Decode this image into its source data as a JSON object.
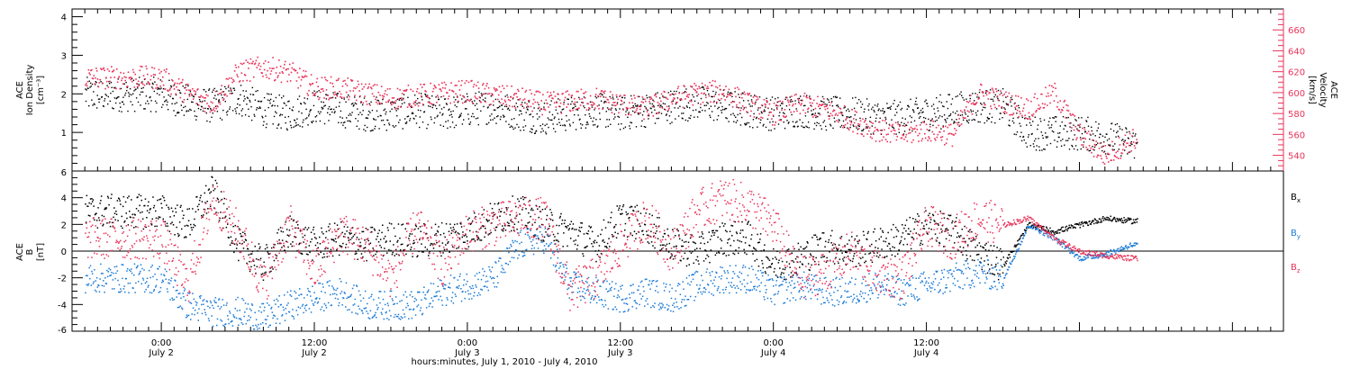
{
  "chart_data": [
    {
      "type": "scatter",
      "panel": "top",
      "ylabel_lines": [
        "ACE",
        "Ion Density",
        "[cm⁻³]"
      ],
      "y_ticks": [
        "1",
        "2",
        "3",
        "4"
      ],
      "y_range": [
        0,
        4.2
      ],
      "right_ylabel_lines": [
        "ACE",
        "Velocity",
        "[km/s]"
      ],
      "right_ticks": [
        "540",
        "560",
        "580",
        "600",
        "620",
        "640",
        "660"
      ],
      "right_range": [
        525,
        680
      ],
      "colors": {
        "density": "#000000",
        "velocity": "#e8335a"
      },
      "series": [
        {
          "name": "",
          "axis": "left",
          "x_hours": [
            0,
            2,
            4,
            6,
            8,
            10,
            12,
            14,
            16,
            18,
            20,
            22,
            24,
            26,
            28,
            30,
            32,
            34,
            36,
            38,
            40,
            42,
            44,
            46,
            48,
            50,
            52,
            54,
            56,
            58,
            60,
            62,
            64,
            66,
            68,
            70,
            72,
            74,
            76
          ],
          "values": [
            2.0,
            1.8,
            1.7,
            1.9,
            1.6,
            1.5,
            1.7,
            1.6,
            1.5,
            1.5,
            1.6,
            1.5,
            1.6,
            1.7,
            1.5,
            1.4,
            1.5,
            1.6,
            1.5,
            1.6,
            1.7,
            1.8,
            1.7,
            1.6,
            1.5,
            1.6,
            1.5,
            1.5,
            1.4,
            1.4,
            1.5,
            1.6,
            1.7,
            1.7,
            1.0,
            1.0,
            1.0,
            0.9,
            0.7
          ]
        },
        {
          "name": "",
          "axis": "right",
          "x_hours": [
            0,
            2,
            4,
            6,
            8,
            10,
            12,
            14,
            16,
            18,
            20,
            22,
            24,
            26,
            28,
            30,
            32,
            34,
            36,
            38,
            40,
            42,
            44,
            46,
            48,
            50,
            52,
            54,
            56,
            58,
            60,
            62,
            64,
            66,
            68,
            70,
            72,
            74,
            76
          ],
          "values": [
            615,
            600,
            590,
            620,
            625,
            620,
            605,
            605,
            600,
            595,
            598,
            600,
            602,
            598,
            595,
            590,
            592,
            595,
            590,
            585,
            595,
            600,
            602,
            590,
            580,
            590,
            585,
            575,
            565,
            560,
            565,
            560,
            600,
            592,
            585,
            600,
            560,
            540,
            555
          ]
        }
      ]
    },
    {
      "type": "scatter",
      "panel": "bottom",
      "ylabel_lines": [
        "ACE",
        "B",
        "[nT]"
      ],
      "y_ticks": [
        "-6",
        "-4",
        "-2",
        "0",
        "2",
        "4",
        "6"
      ],
      "y_range": [
        -6,
        6
      ],
      "zero_line": true,
      "series": [
        {
          "name": "Bx",
          "color": "#000000",
          "x_hours": [
            0,
            2,
            4,
            6,
            8,
            10,
            12,
            14,
            16,
            18,
            20,
            22,
            24,
            26,
            28,
            30,
            32,
            34,
            36,
            38,
            40,
            42,
            44,
            46,
            48,
            50,
            52,
            54,
            56,
            58,
            60,
            62,
            64,
            66,
            68,
            70,
            72,
            74,
            76
          ],
          "values": [
            3.0,
            2.0,
            4.5,
            0.5,
            -1.0,
            1.5,
            0.5,
            1.0,
            0.5,
            1.0,
            0.8,
            1.0,
            1.5,
            2.5,
            3.0,
            2.0,
            1.5,
            0.5,
            2.5,
            2.0,
            0.5,
            0.0,
            1.0,
            1.0,
            -1.0,
            -0.5,
            0.5,
            0.0,
            0.5,
            1.0,
            2.0,
            1.5,
            0.0,
            -1.0,
            2.0,
            1.5,
            2.0,
            2.5,
            2.3
          ]
        },
        {
          "name": "By",
          "color": "#1a7ad6",
          "x_hours": [
            0,
            2,
            4,
            6,
            8,
            10,
            12,
            14,
            16,
            18,
            20,
            22,
            24,
            26,
            28,
            30,
            32,
            34,
            36,
            38,
            40,
            42,
            44,
            46,
            48,
            50,
            52,
            54,
            56,
            58,
            60,
            62,
            64,
            66,
            68,
            70,
            72,
            74,
            76
          ],
          "values": [
            -2.0,
            -4.0,
            -4.5,
            -4.5,
            -5.0,
            -4.0,
            -3.5,
            -3.0,
            -4.0,
            -4.0,
            -4.0,
            -3.0,
            -2.5,
            -2.0,
            0.5,
            1.0,
            -2.5,
            -3.0,
            -3.5,
            -3.0,
            -3.5,
            -2.5,
            -2.0,
            -2.0,
            -3.0,
            -2.5,
            -3.0,
            -3.0,
            -2.5,
            -3.0,
            -2.5,
            -2.0,
            -1.5,
            -2.0,
            2.0,
            1.0,
            -0.5,
            -0.2,
            0.5
          ]
        },
        {
          "name": "Bz",
          "color": "#e8335a",
          "x_hours": [
            0,
            2,
            4,
            6,
            8,
            10,
            12,
            14,
            16,
            18,
            20,
            22,
            24,
            26,
            28,
            30,
            32,
            34,
            36,
            38,
            40,
            42,
            44,
            46,
            48,
            50,
            52,
            54,
            56,
            58,
            60,
            62,
            64,
            66,
            68,
            70,
            72,
            74,
            76
          ],
          "values": [
            1.0,
            -2.5,
            4.0,
            1.5,
            -2.5,
            2.0,
            -1.5,
            1.5,
            0.5,
            -2.0,
            2.0,
            -1.0,
            1.5,
            2.0,
            2.5,
            2.5,
            -3.0,
            -2.0,
            0.5,
            2.5,
            0.0,
            3.0,
            4.0,
            3.5,
            2.0,
            -2.0,
            -1.5,
            0.0,
            -1.5,
            -2.0,
            2.0,
            1.0,
            2.5,
            2.0,
            2.5,
            1.0,
            0.0,
            -0.3,
            -0.5
          ]
        }
      ]
    }
  ],
  "legend": {
    "bx": "B",
    "bx_sub": "x",
    "by": "B",
    "by_sub": "y",
    "bz": "B",
    "bz_sub": "z"
  },
  "x_axis": {
    "range_hours": [
      -7,
      88
    ],
    "ticks": [
      {
        "hour": 0,
        "time": "0:00",
        "date": "July 2"
      },
      {
        "hour": 12,
        "time": "12:00",
        "date": "July 2"
      },
      {
        "hour": 24,
        "time": "0:00",
        "date": "July 3"
      },
      {
        "hour": 36,
        "time": "12:00",
        "date": "July 3"
      },
      {
        "hour": 48,
        "time": "0:00",
        "date": "July 4"
      },
      {
        "hour": 60,
        "time": "12:00",
        "date": "July 4"
      }
    ],
    "title": "hours:minutes, July  1, 2010 - July  4, 2010"
  }
}
